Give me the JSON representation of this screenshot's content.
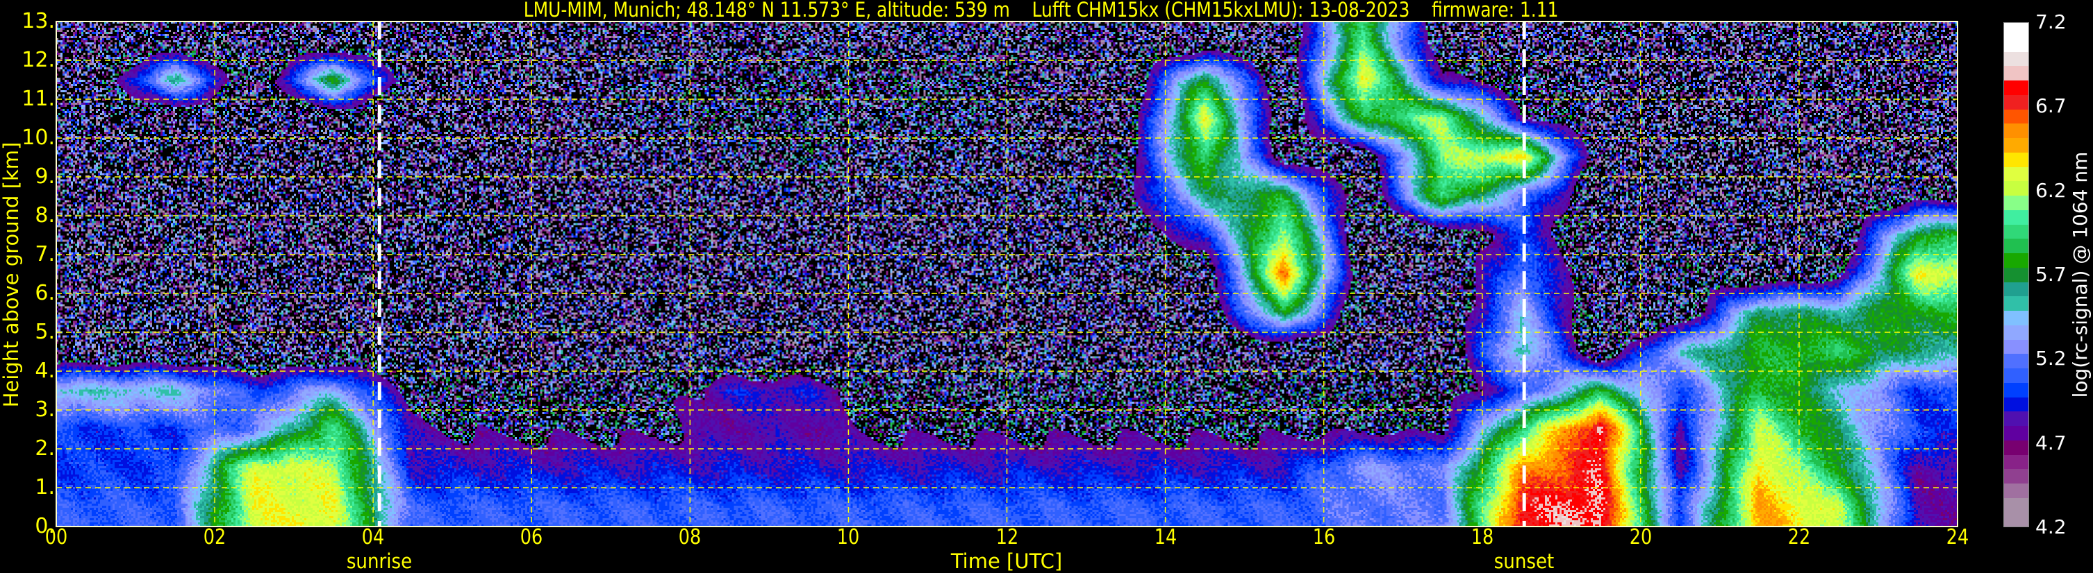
{
  "chart_data": {
    "type": "heatmap",
    "title": "LMU-MIM, Munich; 48.148° N 11.573° E, altitude: 539 m    Lufft CHM15kx (CHM15kxLMU): 13-08-2023    firmware: 1.11",
    "xlabel": "Time [UTC]",
    "ylabel": "Height above ground [km]",
    "xlim": [
      0,
      24
    ],
    "ylim": [
      0,
      13
    ],
    "x_ticks": [
      "00",
      "02",
      "04",
      "06",
      "08",
      "10",
      "12",
      "14",
      "16",
      "18",
      "20",
      "22",
      "24"
    ],
    "y_ticks": [
      "0.",
      "1.",
      "2.",
      "3.",
      "4.",
      "5.",
      "6.",
      "7.",
      "8.",
      "9.",
      "10.",
      "11.",
      "12.",
      "13."
    ],
    "grid": true,
    "grid_color": "#ffff00",
    "annotations": [
      {
        "label": "sunrise",
        "time": 4.08,
        "line_color": "#ffffff"
      },
      {
        "label": "sunset",
        "time": 18.53,
        "line_color": "#ffffff"
      }
    ],
    "colorbar": {
      "label": "log(rc-signal) @ 1064 nm",
      "range": [
        4.2,
        7.2
      ],
      "ticks": [
        "4.2",
        "4.7",
        "5.2",
        "5.7",
        "6.2",
        "6.7",
        "7.2"
      ],
      "colors_top_to_bottom": [
        "#ffffff",
        "#ffffff",
        "#ece0e0",
        "#f0c4c4",
        "#ff0000",
        "#f02020",
        "#ff5500",
        "#ff9000",
        "#ffaa00",
        "#ffe600",
        "#e0ff40",
        "#c8ff40",
        "#88ff88",
        "#40eea0",
        "#30d878",
        "#20c050",
        "#18a800",
        "#159030",
        "#20a090",
        "#30c0a8",
        "#80c0ff",
        "#90a8ff",
        "#8890ff",
        "#5070ff",
        "#3060ff",
        "#0040ff",
        "#0010e0",
        "#5010b0",
        "#6000a0",
        "#780070",
        "#882288",
        "#904090",
        "#a070a0",
        "#a890a8",
        "#a890a8"
      ]
    },
    "time_hours": [
      0,
      1,
      2,
      3,
      4,
      5,
      6,
      7,
      8,
      9,
      10,
      11,
      12,
      13,
      14,
      15,
      16,
      17,
      18,
      19,
      20,
      21,
      22,
      23
    ],
    "height_km": [
      0.5,
      1.5,
      2.5,
      3.5,
      4.5,
      5.5,
      6.5,
      7.5,
      8.5,
      9.5,
      10.5,
      11.5,
      12.5
    ],
    "z": [
      [
        5.1,
        5.1,
        6.3,
        6.3,
        5.1,
        5.1,
        5.1,
        5.1,
        5.1,
        5.1,
        5.1,
        5.1,
        5.1,
        5.1,
        5.1,
        5.1,
        5.2,
        5.2,
        6.8,
        6.9,
        5.0,
        6.5,
        6.2,
        4.8
      ],
      [
        5.0,
        5.0,
        6.3,
        6.2,
        4.9,
        4.9,
        4.9,
        4.9,
        4.9,
        4.9,
        4.9,
        4.9,
        4.9,
        4.9,
        4.9,
        4.9,
        5.3,
        5.2,
        6.5,
        6.8,
        4.8,
        6.4,
        5.8,
        4.8
      ],
      [
        5.0,
        5.0,
        5.2,
        6.0,
        4.8,
        4.7,
        4.7,
        4.7,
        4.8,
        4.8,
        4.7,
        4.7,
        4.7,
        4.7,
        4.7,
        4.7,
        4.7,
        4.7,
        6.0,
        6.9,
        4.8,
        6.2,
        5.6,
        5.0
      ],
      [
        5.5,
        5.5,
        5.0,
        5.4,
        4.6,
        4.6,
        4.6,
        4.6,
        4.9,
        4.9,
        4.6,
        4.6,
        4.6,
        4.6,
        4.6,
        4.6,
        4.6,
        4.6,
        5.0,
        5.8,
        5.0,
        5.9,
        5.5,
        5.0
      ],
      [
        4.4,
        4.4,
        4.4,
        4.4,
        4.4,
        4.4,
        4.4,
        4.4,
        4.4,
        4.4,
        4.4,
        4.4,
        4.4,
        4.4,
        4.4,
        4.4,
        4.4,
        4.4,
        5.6,
        4.4,
        5.5,
        5.8,
        5.9,
        5.6
      ],
      [
        4.4,
        4.4,
        4.4,
        4.4,
        4.4,
        4.4,
        4.4,
        4.4,
        4.4,
        4.4,
        4.4,
        4.4,
        4.4,
        4.4,
        4.4,
        5.8,
        4.4,
        4.4,
        5.4,
        4.4,
        4.4,
        5.7,
        5.6,
        5.8
      ],
      [
        4.4,
        4.4,
        4.4,
        4.4,
        4.4,
        4.4,
        4.4,
        4.4,
        4.4,
        4.4,
        4.4,
        4.4,
        4.4,
        4.4,
        4.4,
        6.6,
        4.4,
        4.4,
        5.2,
        4.4,
        4.6,
        4.4,
        4.6,
        6.3
      ],
      [
        4.4,
        4.4,
        4.4,
        4.4,
        4.4,
        4.4,
        4.4,
        4.4,
        4.4,
        4.4,
        4.4,
        4.4,
        4.4,
        4.4,
        5.0,
        6.2,
        4.4,
        4.4,
        5.0,
        4.4,
        4.4,
        4.4,
        4.4,
        5.8
      ],
      [
        4.4,
        4.4,
        4.4,
        4.4,
        4.4,
        4.4,
        4.4,
        4.4,
        4.4,
        4.4,
        4.4,
        4.4,
        4.4,
        4.6,
        5.6,
        5.8,
        4.4,
        6.0,
        5.2,
        4.4,
        4.4,
        4.4,
        4.4,
        4.6
      ],
      [
        4.4,
        4.4,
        4.4,
        4.4,
        4.4,
        4.4,
        4.4,
        4.4,
        4.4,
        4.6,
        4.4,
        4.4,
        4.4,
        4.6,
        6.0,
        4.6,
        4.4,
        6.1,
        6.4,
        4.4,
        4.4,
        4.4,
        4.4,
        4.4
      ],
      [
        4.4,
        4.4,
        4.4,
        4.4,
        4.4,
        4.4,
        4.4,
        4.6,
        4.6,
        4.6,
        4.4,
        4.6,
        4.4,
        4.4,
        6.3,
        4.4,
        5.8,
        6.2,
        4.8,
        4.4,
        4.4,
        4.4,
        4.4,
        4.4
      ],
      [
        4.4,
        5.6,
        4.4,
        5.8,
        4.4,
        4.4,
        4.4,
        4.4,
        4.6,
        4.6,
        4.6,
        4.6,
        4.4,
        4.4,
        5.8,
        4.4,
        6.4,
        4.8,
        4.6,
        4.4,
        4.4,
        4.4,
        4.4,
        4.4
      ],
      [
        4.4,
        4.4,
        4.4,
        4.4,
        4.4,
        4.4,
        4.4,
        4.4,
        4.4,
        4.4,
        4.4,
        4.4,
        4.4,
        4.4,
        4.4,
        4.4,
        6.0,
        4.4,
        4.4,
        4.4,
        4.4,
        4.4,
        4.4,
        4.4
      ]
    ]
  }
}
